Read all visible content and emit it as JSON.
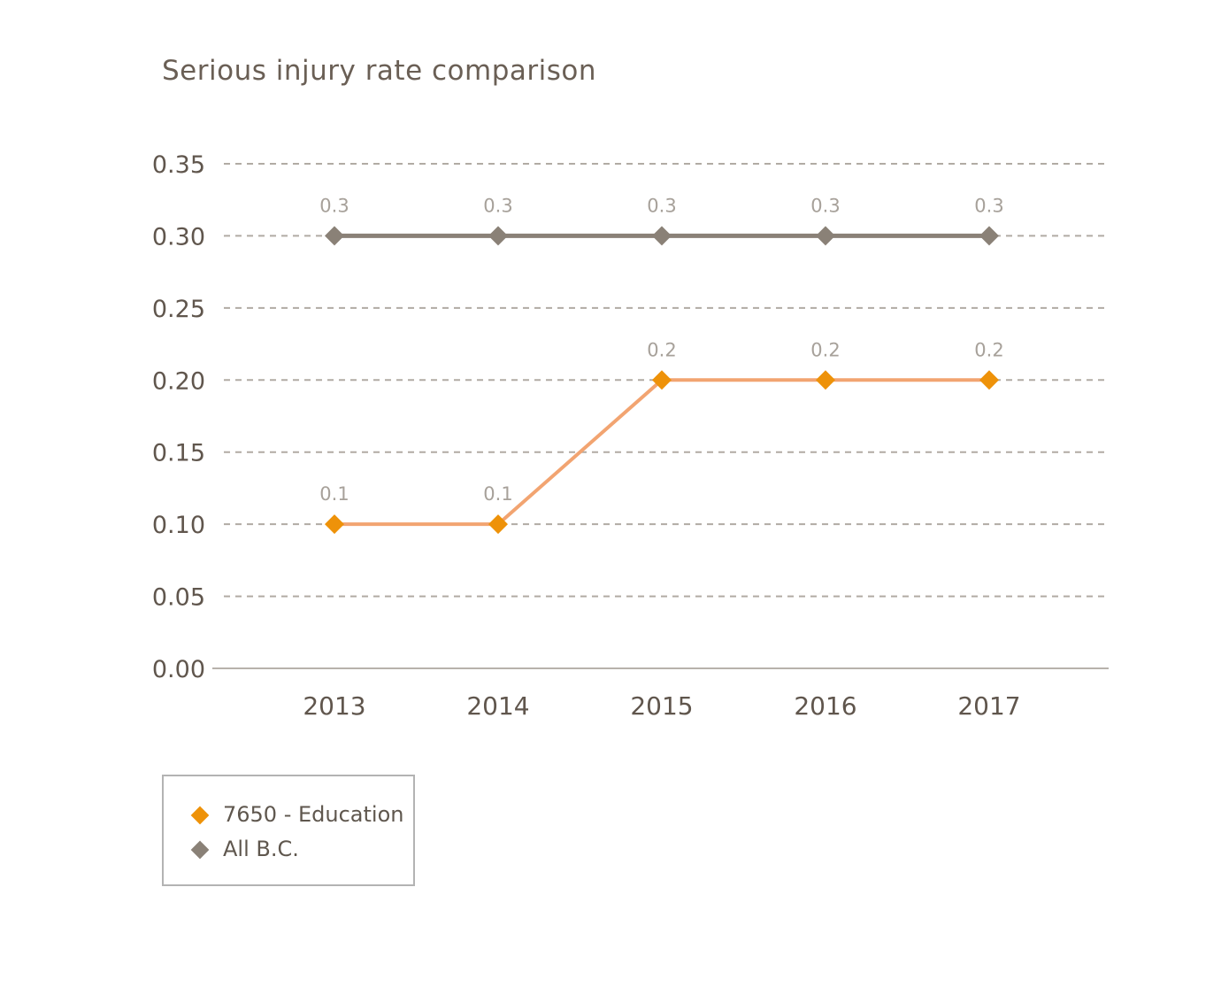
{
  "title": "Serious injury rate comparison",
  "chart_data": {
    "type": "line",
    "title": "Serious injury rate comparison",
    "x": [
      "2013",
      "2014",
      "2015",
      "2016",
      "2017"
    ],
    "series": [
      {
        "name": "7650 - Education",
        "values": [
          0.1,
          0.1,
          0.2,
          0.2,
          0.2
        ],
        "marker_color": "#EE9209",
        "line_color": "#F2A471",
        "marker": "diamond"
      },
      {
        "name": "All B.C.",
        "values": [
          0.3,
          0.3,
          0.3,
          0.3,
          0.3
        ],
        "marker_color": "#8A8177",
        "line_color": "#8A8177",
        "marker": "diamond"
      }
    ],
    "xlabel": "",
    "ylabel": "",
    "ylim": [
      0.0,
      0.35
    ],
    "ytick_step": 0.05,
    "ytick_labels": [
      "0.00",
      "0.05",
      "0.10",
      "0.15",
      "0.20",
      "0.25",
      "0.30",
      "0.35"
    ],
    "grid": "horizontal-dashed",
    "data_labels": [
      "0.1",
      "0.1",
      "0.2",
      "0.2",
      "0.2",
      "0.3",
      "0.3",
      "0.3",
      "0.3",
      "0.3"
    ],
    "legend_position": "bottom-left"
  },
  "legend": {
    "items": [
      {
        "label": "7650 - Education"
      },
      {
        "label": "All B.C."
      }
    ]
  },
  "colors": {
    "title_text": "#6a5f55",
    "tick_text": "#60564d",
    "data_label_text": "#a7a19a",
    "gridline": "#b1aba4",
    "axis_line": "#b7b2ac",
    "legend_border": "#b3b3b3",
    "background": "#ffffff"
  }
}
